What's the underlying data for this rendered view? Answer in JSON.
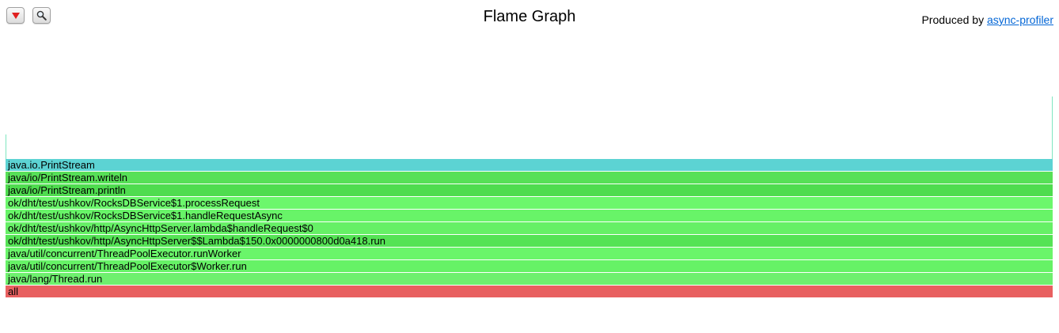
{
  "header": {
    "title": "Flame Graph",
    "produced_by_label": "Produced by",
    "produced_by_link": "async-profiler"
  },
  "toolbar": {
    "reverse_icon": "▼",
    "search_icon": "🔍"
  },
  "frames": [
    {
      "label": "java.io.PrintStream",
      "color": "#5cd3d3"
    },
    {
      "label": "java/io/PrintStream.writeln",
      "color": "#57e057"
    },
    {
      "label": "java/io/PrintStream.println",
      "color": "#4fdc4f"
    },
    {
      "label": "ok/dht/test/ushkov/RocksDBService$1.processRequest",
      "color": "#6cf76c"
    },
    {
      "label": "ok/dht/test/ushkov/RocksDBService$1.handleRequestAsync",
      "color": "#68f468"
    },
    {
      "label": "ok/dht/test/ushkov/http/AsyncHttpServer.lambda$handleRequest$0",
      "color": "#66f066"
    },
    {
      "label": "ok/dht/test/ushkov/http/AsyncHttpServer$$Lambda$150.0x0000000800d0a418.run",
      "color": "#55e355"
    },
    {
      "label": "java/util/concurrent/ThreadPoolExecutor.runWorker",
      "color": "#6af56a"
    },
    {
      "label": "java/util/concurrent/ThreadPoolExecutor$Worker.run",
      "color": "#66f266"
    },
    {
      "label": "java/lang/Thread.run",
      "color": "#6ef06e"
    },
    {
      "label": "all",
      "color": "#e86060"
    }
  ]
}
